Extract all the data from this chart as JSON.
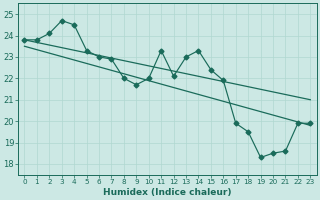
{
  "xlabel": "Humidex (Indice chaleur)",
  "background_color": "#cce8e4",
  "line_color": "#1a6b5a",
  "grid_color": "#b0d8d0",
  "xlim": [
    -0.5,
    23.5
  ],
  "ylim": [
    17.5,
    25.5
  ],
  "yticks": [
    18,
    19,
    20,
    21,
    22,
    23,
    24,
    25
  ],
  "xticks": [
    0,
    1,
    2,
    3,
    4,
    5,
    6,
    7,
    8,
    9,
    10,
    11,
    12,
    13,
    14,
    15,
    16,
    17,
    18,
    19,
    20,
    21,
    22,
    23
  ],
  "jagged": [
    23.8,
    23.8,
    24.1,
    24.7,
    24.5,
    23.3,
    23.0,
    22.9,
    22.0,
    21.7,
    22.0,
    23.3,
    22.1,
    23.0,
    23.3,
    22.4,
    21.9,
    19.9,
    19.5,
    18.3,
    18.5,
    18.6,
    19.9,
    19.9
  ],
  "trend1_start": 23.8,
  "trend1_end": 21.0,
  "trend2_start": 23.5,
  "trend2_end": 19.8
}
